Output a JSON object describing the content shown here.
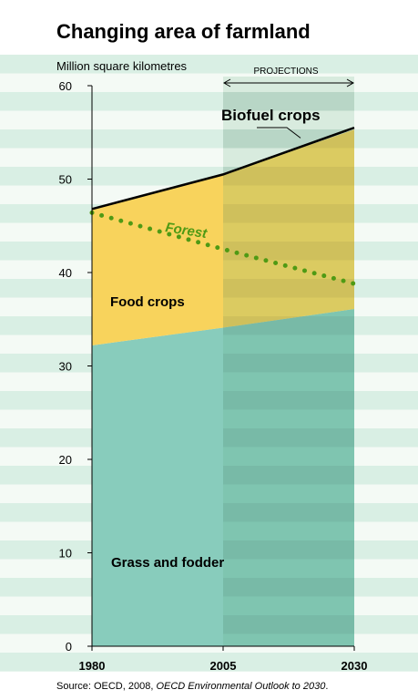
{
  "chart_data": {
    "type": "area",
    "title": "Changing area of farmland",
    "ylabel": "Million square kilometres",
    "x_ticks": [
      "1980",
      "2005",
      "2030"
    ],
    "x": [
      1980,
      2005,
      2030
    ],
    "ylim": [
      0,
      60
    ],
    "y_ticks": [
      "0",
      "10",
      "20",
      "30",
      "40",
      "50",
      "60"
    ],
    "projection_label": "PROJECTIONS",
    "projection_start": 2005,
    "projection_end": 2030,
    "series": [
      {
        "name": "Grass and fodder",
        "type": "area",
        "bottom": [
          0,
          0,
          0
        ],
        "top": [
          32.2,
          34.1,
          36.1
        ],
        "color": "#88ccbc"
      },
      {
        "name": "Food crops",
        "type": "area",
        "bottom": [
          32.2,
          34.1,
          36.1
        ],
        "top": [
          46.8,
          50.5,
          55.3
        ],
        "color": "#f8d35c"
      },
      {
        "name": "Biofuel crops",
        "type": "line",
        "values": [
          46.8,
          50.5,
          55.5
        ],
        "color": "#000000"
      },
      {
        "name": "Forest",
        "type": "dotted-line",
        "values": [
          46.4,
          42.5,
          38.8
        ],
        "color": "#4f9a14"
      }
    ],
    "grid": false,
    "projection_tint": "#5aa878",
    "background_stripes": [
      "#d9efe4",
      "#f4faf5"
    ]
  },
  "source": {
    "prefix": "Source: OECD, 2008, ",
    "italic": "OECD Environmental Outlook to 2030",
    "suffix": "."
  }
}
